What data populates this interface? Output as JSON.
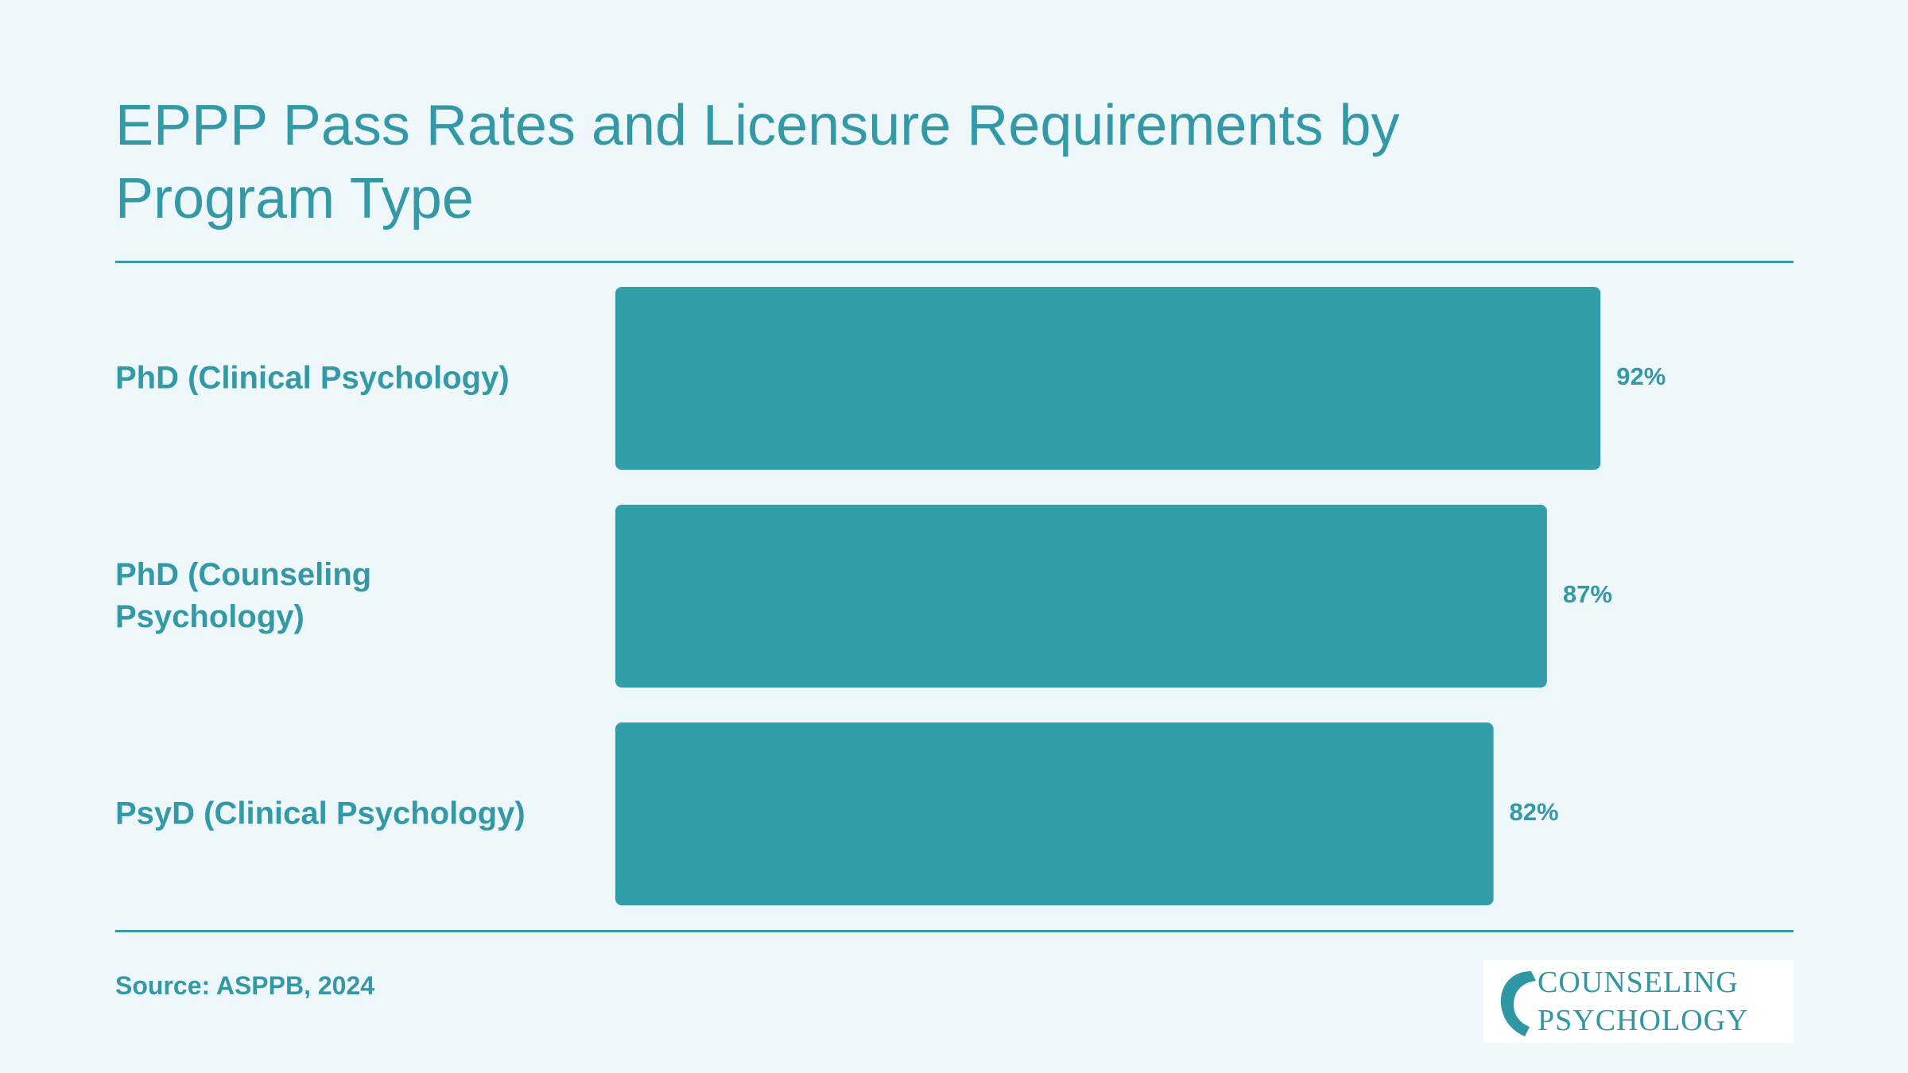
{
  "chart_data": {
    "type": "bar",
    "orientation": "horizontal",
    "title": "EPPP Pass Rates and Licensure Requirements by Program Type",
    "categories": [
      "PhD (Clinical Psychology)",
      "PhD (Counseling Psychology)",
      "PsyD (Clinical Psychology)"
    ],
    "values": [
      92,
      87,
      82
    ],
    "value_labels": [
      "92%",
      "87%",
      "82%"
    ],
    "color": "#329ea9",
    "xlim": [
      0,
      100
    ],
    "source": "Source: ASPPB, 2024"
  },
  "logo": {
    "line1": "COUNSELING",
    "line2": "PSYCHOLOGY"
  }
}
